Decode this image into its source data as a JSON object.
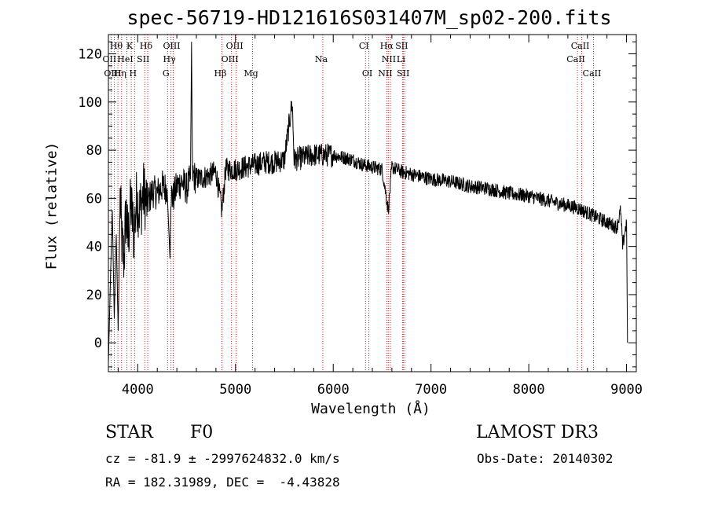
{
  "chart_data": {
    "type": "line",
    "title": "spec-56719-HD121616S031407M_sp02-200.fits",
    "xlabel": "Wavelength (Å)",
    "ylabel": "Flux (relative)",
    "xlim": [
      3700,
      9100
    ],
    "ylim": [
      -12,
      128
    ],
    "xticks": [
      4000,
      5000,
      6000,
      7000,
      8000,
      9000
    ],
    "yticks": [
      0,
      20,
      40,
      60,
      80,
      100,
      120
    ],
    "series": [
      {
        "name": "flux",
        "x": [
          3700,
          3720,
          3740,
          3760,
          3780,
          3800,
          3820,
          3840,
          3860,
          3880,
          3900,
          3930,
          3960,
          3990,
          4020,
          4060,
          4100,
          4150,
          4200,
          4250,
          4300,
          4330,
          4340,
          4360,
          4400,
          4450,
          4500,
          4540,
          4550,
          4560,
          4600,
          4700,
          4800,
          4861,
          4900,
          5000,
          5100,
          5200,
          5300,
          5400,
          5500,
          5580,
          5600,
          5700,
          5800,
          5900,
          6000,
          6100,
          6200,
          6300,
          6400,
          6500,
          6563,
          6600,
          6700,
          6800,
          6900,
          7000,
          7200,
          7400,
          7600,
          7800,
          8000,
          8200,
          8400,
          8500,
          8600,
          8700,
          8800,
          8900,
          8940,
          8960,
          8980,
          9000,
          9010
        ],
        "values": [
          -8,
          25,
          55,
          10,
          45,
          5,
          60,
          40,
          35,
          55,
          42,
          58,
          45,
          60,
          55,
          62,
          58,
          63,
          62,
          65,
          64,
          35,
          62,
          60,
          65,
          67,
          64,
          68,
          125,
          70,
          68,
          69,
          71,
          55,
          72,
          72,
          73,
          74,
          75,
          75,
          76,
          100,
          76,
          77,
          78,
          78,
          78,
          77,
          76,
          74,
          73,
          72,
          55,
          73,
          71,
          70,
          69,
          68,
          67,
          65,
          64,
          62,
          61,
          59,
          57,
          56,
          54,
          52,
          50,
          48,
          55,
          40,
          45,
          50,
          0
        ]
      }
    ],
    "lines": [
      {
        "label": "Hθ",
        "x": 3797,
        "row": 0
      },
      {
        "label": "K",
        "x": 3934,
        "row": 0
      },
      {
        "label": "Hδ",
        "x": 4102,
        "row": 0
      },
      {
        "label": "OIII",
        "x": 4363,
        "row": 0
      },
      {
        "label": "OIII",
        "x": 5007,
        "row": 0
      },
      {
        "label": "CI",
        "x": 6330,
        "row": 0
      },
      {
        "label": "Hα",
        "x": 6563,
        "row": 0
      },
      {
        "label": "SII",
        "x": 6716,
        "row": 0
      },
      {
        "label": "CaII",
        "x": 8542,
        "row": 0
      },
      {
        "label": "OII",
        "x": 3727,
        "row": 1
      },
      {
        "label": "HeI",
        "x": 3889,
        "row": 1
      },
      {
        "label": "SII",
        "x": 4072,
        "row": 1
      },
      {
        "label": "Hγ",
        "x": 4340,
        "row": 1
      },
      {
        "label": "OIII",
        "x": 4959,
        "row": 1
      },
      {
        "label": "Na",
        "x": 5893,
        "row": 1
      },
      {
        "label": "NII",
        "x": 6584,
        "row": 1
      },
      {
        "label": "Li",
        "x": 6708,
        "row": 1
      },
      {
        "label": "CaII",
        "x": 8498,
        "row": 1
      },
      {
        "label": "OIII",
        "x": 3760,
        "row": 2
      },
      {
        "label": "Hη",
        "x": 3835,
        "row": 2
      },
      {
        "label": "H",
        "x": 3968,
        "row": 2
      },
      {
        "label": "G",
        "x": 4305,
        "row": 2
      },
      {
        "label": "Hβ",
        "x": 4861,
        "row": 2
      },
      {
        "label": "Mg",
        "x": 5175,
        "row": 2
      },
      {
        "label": "OI",
        "x": 6364,
        "row": 2
      },
      {
        "label": "NII",
        "x": 6548,
        "row": 2
      },
      {
        "label": "SII",
        "x": 6731,
        "row": 2
      },
      {
        "label": "CaII",
        "x": 8662,
        "row": 2
      }
    ]
  },
  "info": {
    "class": "STAR",
    "subclass": "F0",
    "survey": "LAMOST DR3",
    "cz": "cz = -81.9 ± -2997624832.0 km/s",
    "obs_date": "Obs-Date: 20140302",
    "radec": "RA = 182.31989, DEC =  -4.43828"
  }
}
